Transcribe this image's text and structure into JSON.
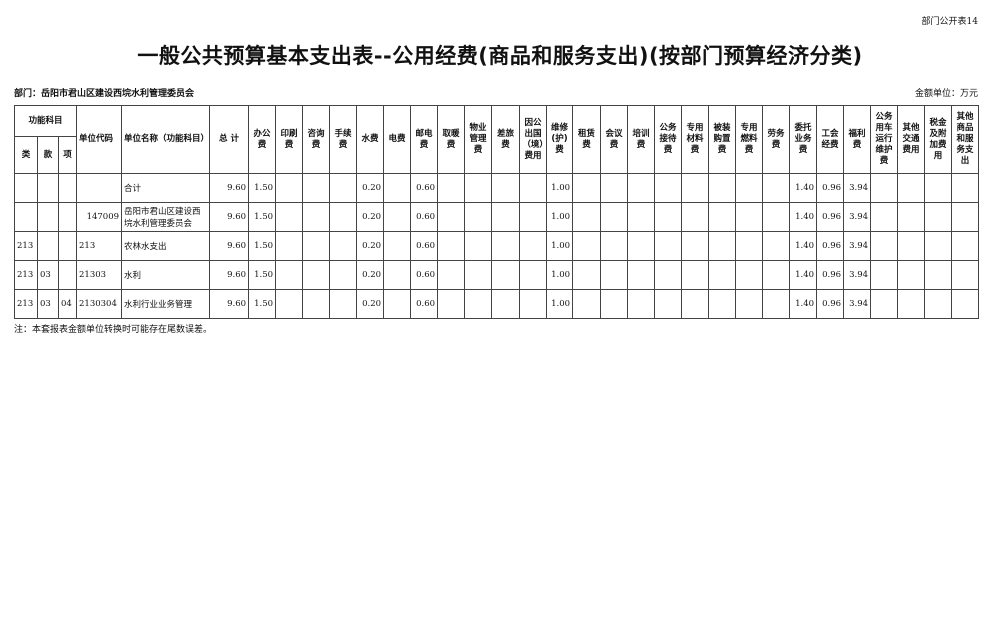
{
  "corner_label": "部门公开表14",
  "title": "一般公共预算基本支出表--公用经费(商品和服务支出)(按部门预算经济分类)",
  "department": "部门：岳阳市君山区建设西垸水利管理委员会",
  "amount_unit": "金额单位：万元",
  "header": {
    "group": "功能科目",
    "sub": [
      "类",
      "款",
      "项"
    ],
    "columns": [
      "单位代码",
      "单位名称（功能科目）",
      "总 计",
      "办公费",
      "印刷费",
      "咨询费",
      "手续费",
      "水费",
      "电费",
      "邮电费",
      "取暖费",
      "物业管理费",
      "差旅费",
      "因公出国（境）费用",
      "维修(护)费",
      "租赁费",
      "会议费",
      "培训费",
      "公务接待费",
      "专用材料费",
      "被装购置费",
      "专用燃料费",
      "劳务费",
      "委托业务费",
      "工会经费",
      "福利费",
      "公务用车运行维护费",
      "其他交通费用",
      "税金及附加费用",
      "其他商品和服务支出"
    ]
  },
  "rows": [
    [
      "",
      "",
      "",
      "",
      "合计",
      "9.60",
      "1.50",
      "",
      "",
      "",
      "0.20",
      "",
      "0.60",
      "",
      "",
      "",
      "",
      "1.00",
      "",
      "",
      "",
      "",
      "",
      "",
      "",
      "",
      "1.40",
      "0.96",
      "3.94",
      "",
      "",
      "",
      ""
    ],
    [
      "",
      "",
      "",
      "147009",
      "岳阳市君山区建设西垸水利管理委员会",
      "9.60",
      "1.50",
      "",
      "",
      "",
      "0.20",
      "",
      "0.60",
      "",
      "",
      "",
      "",
      "1.00",
      "",
      "",
      "",
      "",
      "",
      "",
      "",
      "",
      "1.40",
      "0.96",
      "3.94",
      "",
      "",
      "",
      ""
    ],
    [
      "213",
      "",
      "",
      "213",
      "农林水支出",
      "9.60",
      "1.50",
      "",
      "",
      "",
      "0.20",
      "",
      "0.60",
      "",
      "",
      "",
      "",
      "1.00",
      "",
      "",
      "",
      "",
      "",
      "",
      "",
      "",
      "1.40",
      "0.96",
      "3.94",
      "",
      "",
      "",
      ""
    ],
    [
      "213",
      "03",
      "",
      "21303",
      "水利",
      "9.60",
      "1.50",
      "",
      "",
      "",
      "0.20",
      "",
      "0.60",
      "",
      "",
      "",
      "",
      "1.00",
      "",
      "",
      "",
      "",
      "",
      "",
      "",
      "",
      "1.40",
      "0.96",
      "3.94",
      "",
      "",
      "",
      ""
    ],
    [
      "213",
      "03",
      "04",
      "2130304",
      "水利行业业务管理",
      "9.60",
      "1.50",
      "",
      "",
      "",
      "0.20",
      "",
      "0.60",
      "",
      "",
      "",
      "",
      "1.00",
      "",
      "",
      "",
      "",
      "",
      "",
      "",
      "",
      "1.40",
      "0.96",
      "3.94",
      "",
      "",
      "",
      ""
    ]
  ],
  "note": "注：本套报表金额单位转换时可能存在尾数误差。"
}
